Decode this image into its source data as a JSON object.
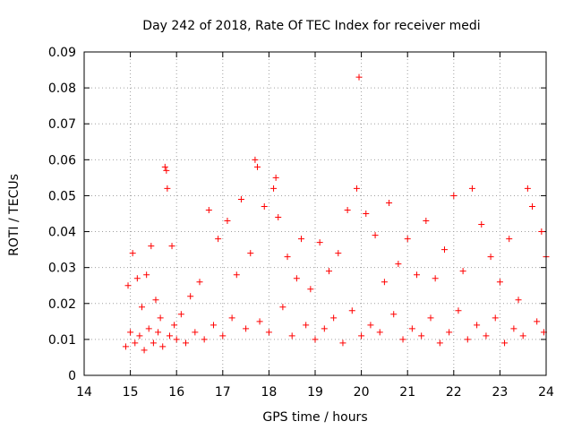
{
  "chart_data": {
    "type": "scatter",
    "title": "Day 242 of 2018, Rate Of TEC Index for receiver medi",
    "xlabel": "GPS time / hours",
    "ylabel": "ROTI / TECUs",
    "xlim": [
      14,
      24
    ],
    "ylim": [
      0,
      0.09
    ],
    "xticks": [
      "14",
      "15",
      "16",
      "17",
      "18",
      "19",
      "20",
      "21",
      "22",
      "23",
      "24"
    ],
    "yticks": [
      "0",
      "0.01",
      "0.02",
      "0.03",
      "0.04",
      "0.05",
      "0.06",
      "0.07",
      "0.08",
      "0.09"
    ],
    "grid": true,
    "marker": "+",
    "color": "#ff0000",
    "series": [
      {
        "name": "ROTI",
        "points": [
          [
            14.9,
            0.008
          ],
          [
            14.95,
            0.025
          ],
          [
            15.0,
            0.012
          ],
          [
            15.05,
            0.034
          ],
          [
            15.1,
            0.009
          ],
          [
            15.15,
            0.027
          ],
          [
            15.2,
            0.011
          ],
          [
            15.25,
            0.019
          ],
          [
            15.3,
            0.007
          ],
          [
            15.35,
            0.028
          ],
          [
            15.4,
            0.013
          ],
          [
            15.45,
            0.036
          ],
          [
            15.5,
            0.009
          ],
          [
            15.55,
            0.021
          ],
          [
            15.6,
            0.012
          ],
          [
            15.65,
            0.016
          ],
          [
            15.7,
            0.008
          ],
          [
            15.75,
            0.058
          ],
          [
            15.78,
            0.057
          ],
          [
            15.8,
            0.052
          ],
          [
            15.85,
            0.011
          ],
          [
            15.9,
            0.036
          ],
          [
            15.95,
            0.014
          ],
          [
            16.0,
            0.01
          ],
          [
            16.1,
            0.017
          ],
          [
            16.2,
            0.009
          ],
          [
            16.3,
            0.022
          ],
          [
            16.4,
            0.012
          ],
          [
            16.5,
            0.026
          ],
          [
            16.6,
            0.01
          ],
          [
            16.7,
            0.046
          ],
          [
            16.8,
            0.014
          ],
          [
            16.9,
            0.038
          ],
          [
            17.0,
            0.011
          ],
          [
            17.1,
            0.043
          ],
          [
            17.2,
            0.016
          ],
          [
            17.3,
            0.028
          ],
          [
            17.4,
            0.049
          ],
          [
            17.5,
            0.013
          ],
          [
            17.6,
            0.034
          ],
          [
            17.7,
            0.06
          ],
          [
            17.75,
            0.058
          ],
          [
            17.8,
            0.015
          ],
          [
            17.9,
            0.047
          ],
          [
            18.0,
            0.012
          ],
          [
            18.1,
            0.052
          ],
          [
            18.15,
            0.055
          ],
          [
            18.2,
            0.044
          ],
          [
            18.3,
            0.019
          ],
          [
            18.4,
            0.033
          ],
          [
            18.5,
            0.011
          ],
          [
            18.6,
            0.027
          ],
          [
            18.7,
            0.038
          ],
          [
            18.8,
            0.014
          ],
          [
            18.9,
            0.024
          ],
          [
            19.0,
            0.01
          ],
          [
            19.1,
            0.037
          ],
          [
            19.2,
            0.013
          ],
          [
            19.3,
            0.029
          ],
          [
            19.4,
            0.016
          ],
          [
            19.5,
            0.034
          ],
          [
            19.6,
            0.009
          ],
          [
            19.7,
            0.046
          ],
          [
            19.8,
            0.018
          ],
          [
            19.9,
            0.052
          ],
          [
            19.95,
            0.083
          ],
          [
            20.0,
            0.011
          ],
          [
            20.1,
            0.045
          ],
          [
            20.2,
            0.014
          ],
          [
            20.3,
            0.039
          ],
          [
            20.4,
            0.012
          ],
          [
            20.5,
            0.026
          ],
          [
            20.6,
            0.048
          ],
          [
            20.7,
            0.017
          ],
          [
            20.8,
            0.031
          ],
          [
            20.9,
            0.01
          ],
          [
            21.0,
            0.038
          ],
          [
            21.1,
            0.013
          ],
          [
            21.2,
            0.028
          ],
          [
            21.3,
            0.011
          ],
          [
            21.4,
            0.043
          ],
          [
            21.5,
            0.016
          ],
          [
            21.6,
            0.027
          ],
          [
            21.7,
            0.009
          ],
          [
            21.8,
            0.035
          ],
          [
            21.9,
            0.012
          ],
          [
            22.0,
            0.05
          ],
          [
            22.1,
            0.018
          ],
          [
            22.2,
            0.029
          ],
          [
            22.3,
            0.01
          ],
          [
            22.4,
            0.052
          ],
          [
            22.5,
            0.014
          ],
          [
            22.6,
            0.042
          ],
          [
            22.7,
            0.011
          ],
          [
            22.8,
            0.033
          ],
          [
            22.9,
            0.016
          ],
          [
            23.0,
            0.026
          ],
          [
            23.1,
            0.009
          ],
          [
            23.2,
            0.038
          ],
          [
            23.3,
            0.013
          ],
          [
            23.4,
            0.021
          ],
          [
            23.5,
            0.011
          ],
          [
            23.6,
            0.052
          ],
          [
            23.7,
            0.047
          ],
          [
            23.8,
            0.015
          ],
          [
            23.9,
            0.04
          ],
          [
            23.95,
            0.012
          ],
          [
            24.0,
            0.033
          ]
        ]
      }
    ]
  }
}
